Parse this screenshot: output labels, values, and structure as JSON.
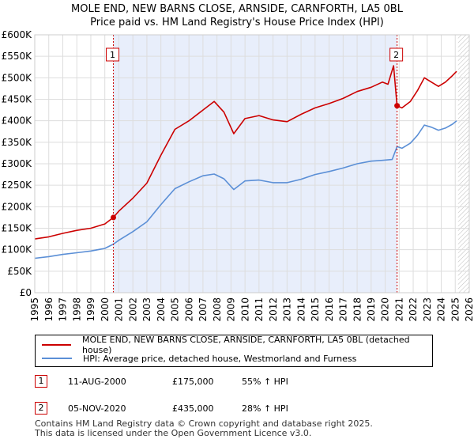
{
  "title_line1": "MOLE END, NEW BARNS CLOSE, ARNSIDE, CARNFORTH, LA5 0BL",
  "title_line2": "Price paid vs. HM Land Registry's House Price Index (HPI)",
  "chart_data": {
    "type": "line",
    "title": "MOLE END, NEW BARNS CLOSE, ARNSIDE, CARNFORTH, LA5 0BL — Price paid vs. HM Land Registry's House Price Index (HPI)",
    "xlim": [
      1995,
      2026
    ],
    "ylim": [
      0,
      600000
    ],
    "x_ticks": [
      "1995",
      "1996",
      "1997",
      "1998",
      "1999",
      "2000",
      "2001",
      "2002",
      "2003",
      "2004",
      "2005",
      "2006",
      "2007",
      "2008",
      "2009",
      "2010",
      "2011",
      "2012",
      "2013",
      "2014",
      "2015",
      "2016",
      "2017",
      "2018",
      "2019",
      "2020",
      "2021",
      "2022",
      "2023",
      "2024",
      "2025",
      "2026"
    ],
    "y_ticks": [
      {
        "value": 0,
        "label": "£0"
      },
      {
        "value": 50000,
        "label": "£50K"
      },
      {
        "value": 100000,
        "label": "£100K"
      },
      {
        "value": 150000,
        "label": "£150K"
      },
      {
        "value": 200000,
        "label": "£200K"
      },
      {
        "value": 250000,
        "label": "£250K"
      },
      {
        "value": 300000,
        "label": "£300K"
      },
      {
        "value": 350000,
        "label": "£350K"
      },
      {
        "value": 400000,
        "label": "£400K"
      },
      {
        "value": 450000,
        "label": "£450K"
      },
      {
        "value": 500000,
        "label": "£500K"
      },
      {
        "value": 550000,
        "label": "£550K"
      },
      {
        "value": 600000,
        "label": "£600K"
      }
    ],
    "shaded_region": [
      2000.61,
      2020.85
    ],
    "future_hatch_from": 2025.2,
    "series": [
      {
        "name": "MOLE END, NEW BARNS CLOSE, ARNSIDE, CARNFORTH, LA5 0BL (detached house)",
        "color": "#cc0000",
        "points": [
          [
            1995,
            125000
          ],
          [
            1996,
            130000
          ],
          [
            1997,
            138000
          ],
          [
            1998,
            145000
          ],
          [
            1999,
            150000
          ],
          [
            2000,
            160000
          ],
          [
            2000.61,
            175000
          ],
          [
            2001,
            190000
          ],
          [
            2002,
            220000
          ],
          [
            2003,
            255000
          ],
          [
            2004,
            320000
          ],
          [
            2005,
            380000
          ],
          [
            2006,
            400000
          ],
          [
            2007,
            425000
          ],
          [
            2007.8,
            445000
          ],
          [
            2008.5,
            420000
          ],
          [
            2009.2,
            370000
          ],
          [
            2010,
            405000
          ],
          [
            2011,
            412000
          ],
          [
            2012,
            402000
          ],
          [
            2013,
            398000
          ],
          [
            2014,
            415000
          ],
          [
            2015,
            430000
          ],
          [
            2016,
            440000
          ],
          [
            2017,
            452000
          ],
          [
            2018,
            468000
          ],
          [
            2019,
            478000
          ],
          [
            2019.8,
            490000
          ],
          [
            2020.2,
            485000
          ],
          [
            2020.6,
            528000
          ],
          [
            2020.85,
            435000
          ],
          [
            2021.2,
            430000
          ],
          [
            2021.8,
            445000
          ],
          [
            2022.3,
            470000
          ],
          [
            2022.8,
            500000
          ],
          [
            2023.3,
            490000
          ],
          [
            2023.8,
            480000
          ],
          [
            2024.3,
            490000
          ],
          [
            2024.8,
            505000
          ],
          [
            2025.1,
            515000
          ]
        ]
      },
      {
        "name": "HPI: Average price, detached house, Westmorland and Furness",
        "color": "#5b8fd6",
        "points": [
          [
            1995,
            80000
          ],
          [
            1996,
            84000
          ],
          [
            1997,
            89000
          ],
          [
            1998,
            93000
          ],
          [
            1999,
            97000
          ],
          [
            2000,
            103000
          ],
          [
            2000.61,
            113000
          ],
          [
            2001,
            122000
          ],
          [
            2002,
            142000
          ],
          [
            2003,
            165000
          ],
          [
            2004,
            205000
          ],
          [
            2005,
            242000
          ],
          [
            2006,
            258000
          ],
          [
            2007,
            272000
          ],
          [
            2007.8,
            276000
          ],
          [
            2008.5,
            265000
          ],
          [
            2009.2,
            240000
          ],
          [
            2010,
            260000
          ],
          [
            2011,
            262000
          ],
          [
            2012,
            256000
          ],
          [
            2013,
            256000
          ],
          [
            2014,
            264000
          ],
          [
            2015,
            275000
          ],
          [
            2016,
            282000
          ],
          [
            2017,
            290000
          ],
          [
            2018,
            300000
          ],
          [
            2019,
            306000
          ],
          [
            2019.8,
            308000
          ],
          [
            2020.5,
            310000
          ],
          [
            2020.85,
            340000
          ],
          [
            2021.2,
            336000
          ],
          [
            2021.8,
            348000
          ],
          [
            2022.3,
            366000
          ],
          [
            2022.8,
            390000
          ],
          [
            2023.3,
            385000
          ],
          [
            2023.8,
            378000
          ],
          [
            2024.3,
            383000
          ],
          [
            2024.8,
            392000
          ],
          [
            2025.1,
            400000
          ]
        ]
      }
    ],
    "sales": [
      {
        "label": "1",
        "x": 2000.61,
        "y": 175000
      },
      {
        "label": "2",
        "x": 2020.85,
        "y": 435000
      }
    ]
  },
  "legend": {
    "property_label": "MOLE END, NEW BARNS CLOSE, ARNSIDE, CARNFORTH, LA5 0BL (detached house)",
    "hpi_label": "HPI: Average price, detached house, Westmorland and Furness"
  },
  "transactions": [
    {
      "num": "1",
      "date": "11-AUG-2000",
      "price": "£175,000",
      "hpi": "55% ↑ HPI"
    },
    {
      "num": "2",
      "date": "05-NOV-2020",
      "price": "£435,000",
      "hpi": "28% ↑ HPI"
    }
  ],
  "footer_line1": "Contains HM Land Registry data © Crown copyright and database right 2025.",
  "footer_line2": "This data is licensed under the Open Government Licence v3.0.",
  "colors": {
    "property": "#cc0000",
    "hpi": "#5b8fd6",
    "shade": "#e8eefb",
    "grid": "#dddddd"
  }
}
